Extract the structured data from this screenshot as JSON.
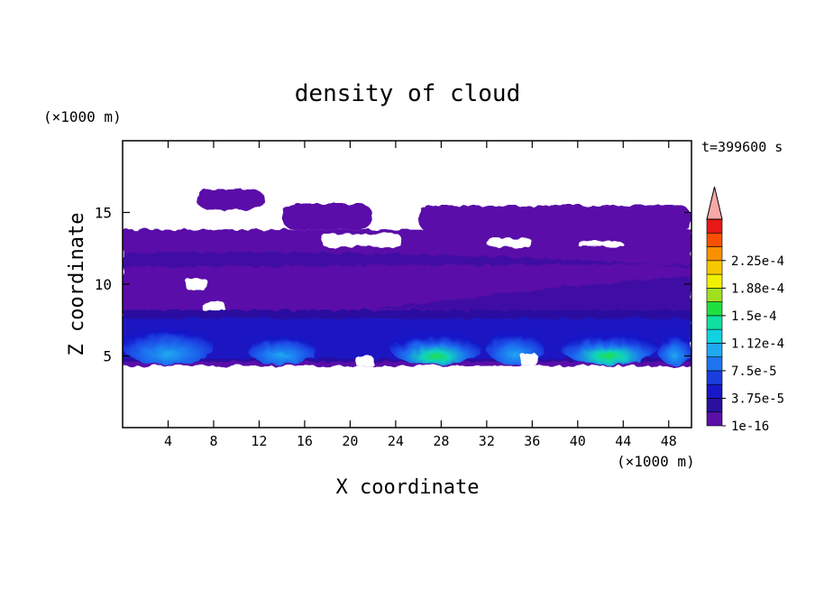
{
  "chart_data": {
    "type": "heatmap",
    "title": "density of cloud",
    "xlabel": "X coordinate",
    "ylabel": "Z coordinate",
    "x_unit": "(×1000 m)",
    "y_unit": "(×1000 m)",
    "time_label": "t=399600 s",
    "xlim": [
      0,
      50
    ],
    "ylim": [
      0,
      20
    ],
    "xticks": [
      4,
      8,
      12,
      16,
      20,
      24,
      28,
      32,
      36,
      40,
      44,
      48
    ],
    "yticks": [
      5,
      10,
      15
    ],
    "grid": false,
    "colorbar": {
      "position": "right",
      "labels": [
        "1e-16",
        "3.75e-5",
        "7.5e-5",
        "1.12e-4",
        "1.5e-4",
        "1.88e-4",
        "2.25e-4"
      ],
      "colors": [
        "#5a10a8",
        "#2c0fa0",
        "#1818c8",
        "#1a3de0",
        "#1e74f0",
        "#20a8f0",
        "#10d2e0",
        "#10e0a0",
        "#20e040",
        "#a0e020",
        "#f0f000",
        "#f8c800",
        "#f89000",
        "#f85000",
        "#e81818",
        "#f8a8a8"
      ]
    },
    "levels_note": "",
    "fields": {
      "base_layer_z": [
        4.3,
        13.8
      ],
      "upper_patches": [
        {
          "x": [
            6.5,
            12.5
          ],
          "z": [
            15.2,
            16.6
          ]
        },
        {
          "x": [
            14,
            22
          ],
          "z": [
            13.8,
            15.6
          ]
        },
        {
          "x": [
            26,
            50
          ],
          "z": [
            13.6,
            15.5
          ]
        }
      ],
      "high_density_cells": [
        {
          "x": [
            0,
            8
          ],
          "z": [
            4.5,
            7.0
          ],
          "peak": 9e-05
        },
        {
          "x": [
            11,
            17
          ],
          "z": [
            4.5,
            6.5
          ],
          "peak": 7.5e-05
        },
        {
          "x": [
            23.5,
            31.5
          ],
          "z": [
            4.5,
            6.8
          ],
          "peak": 0.00015
        },
        {
          "x": [
            32,
            37
          ],
          "z": [
            4.5,
            6.8
          ],
          "peak": 0.0001
        },
        {
          "x": [
            38.5,
            47
          ],
          "z": [
            4.5,
            6.8
          ],
          "peak": 0.00015
        },
        {
          "x": [
            47,
            50
          ],
          "z": [
            4.5,
            6.6
          ],
          "peak": 9e-05
        }
      ]
    }
  }
}
